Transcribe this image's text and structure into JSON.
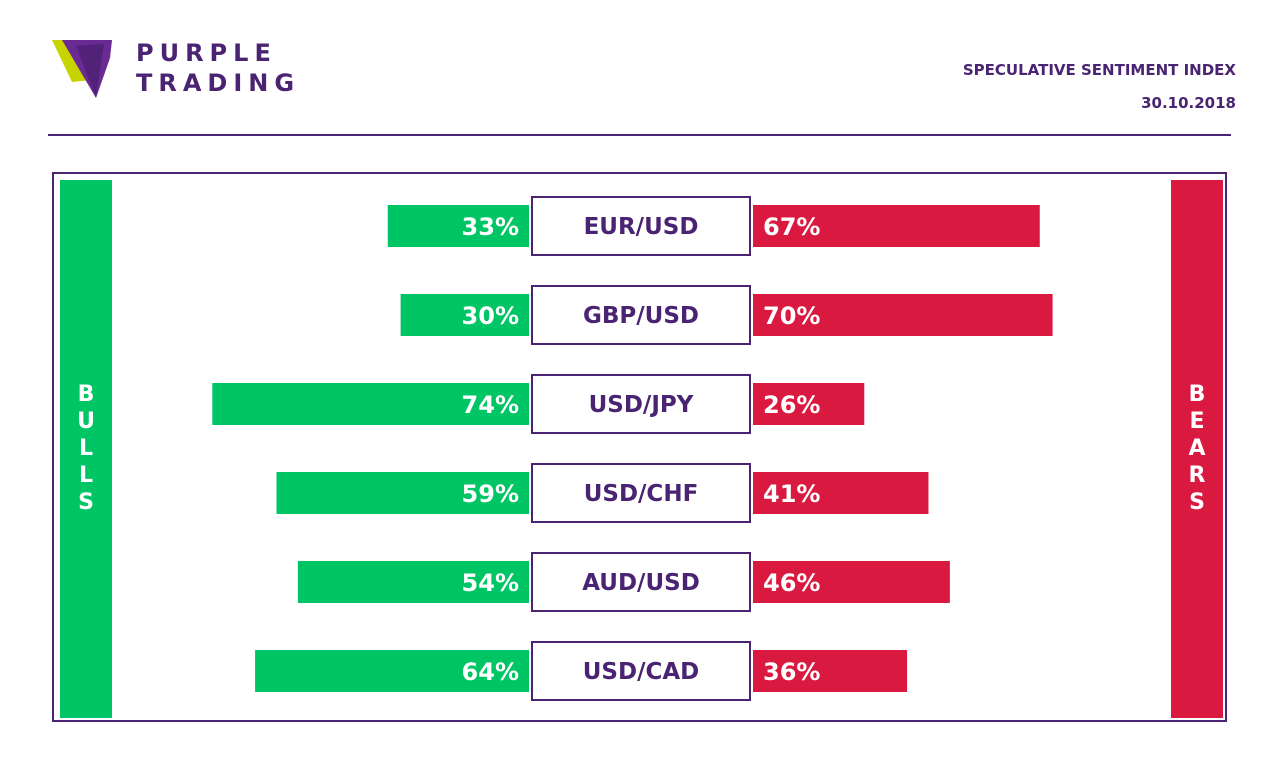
{
  "brand": {
    "line1": "PURPLE",
    "line2": "TRADING",
    "logo_icon": "purple-triangle-logo-icon"
  },
  "header": {
    "title": "SPECULATIVE SENTIMENT INDEX",
    "date": "30.10.2018"
  },
  "side_labels": {
    "left": "BULLS",
    "right": "BEARS"
  },
  "colors": {
    "bull": "#00c565",
    "bear": "#d91940",
    "purple": "#4a2473",
    "lime": "#c8d400"
  },
  "chart_data": {
    "type": "bar",
    "categories": [
      "EUR/USD",
      "GBP/USD",
      "USD/JPY",
      "USD/CHF",
      "AUD/USD",
      "USD/CAD"
    ],
    "series": [
      {
        "name": "BULLS",
        "values": [
          33,
          30,
          74,
          59,
          54,
          64
        ],
        "labels": [
          "33%",
          "30%",
          "74%",
          "59%",
          "54%",
          "64%"
        ]
      },
      {
        "name": "BEARS",
        "values": [
          67,
          70,
          26,
          41,
          46,
          36
        ],
        "labels": [
          "67%",
          "70%",
          "26%",
          "41%",
          "46%",
          "36%"
        ]
      }
    ]
  }
}
